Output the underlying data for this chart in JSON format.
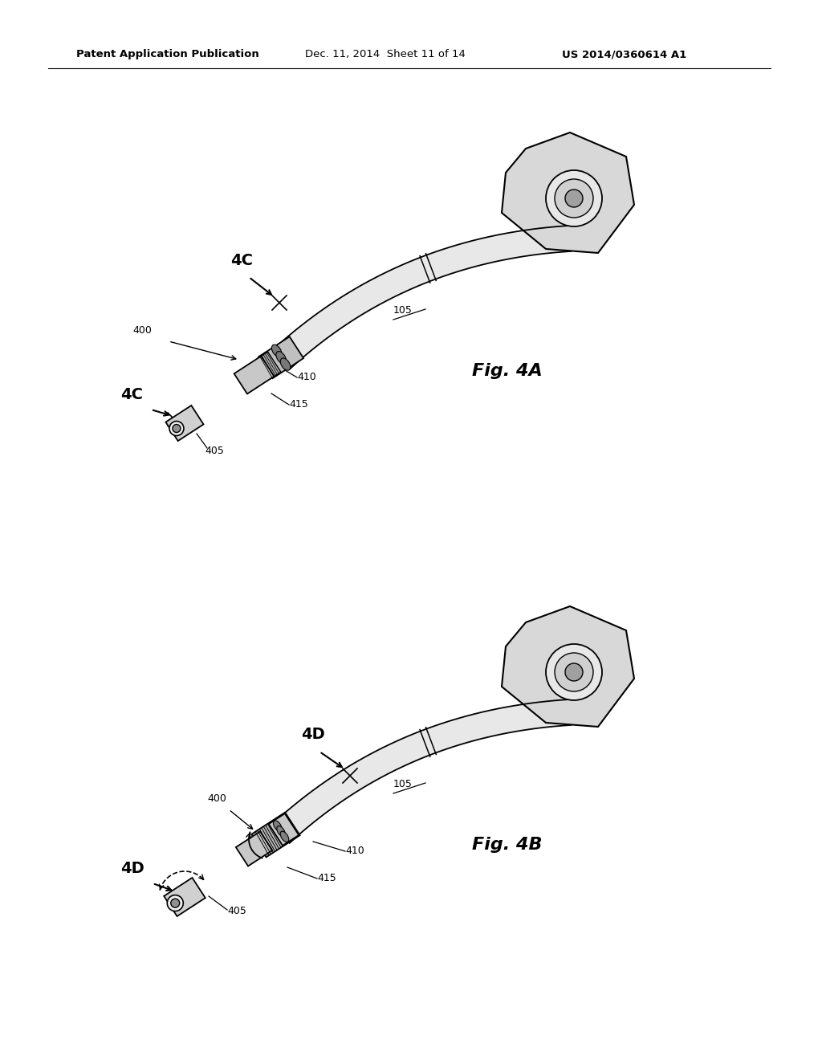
{
  "background_color": "#ffffff",
  "page_width": 10.24,
  "page_height": 13.2,
  "header_text1": "Patent Application Publication",
  "header_text2": "Dec. 11, 2014  Sheet 11 of 14",
  "header_text3": "US 2014/0360614 A1",
  "header_fontsize": 9.5,
  "fig4a_label": "Fig. 4A",
  "fig4b_label": "Fig. 4B",
  "ref_fontsize": 9,
  "fig_label_fontsize": 16,
  "bold_label_fontsize": 14
}
